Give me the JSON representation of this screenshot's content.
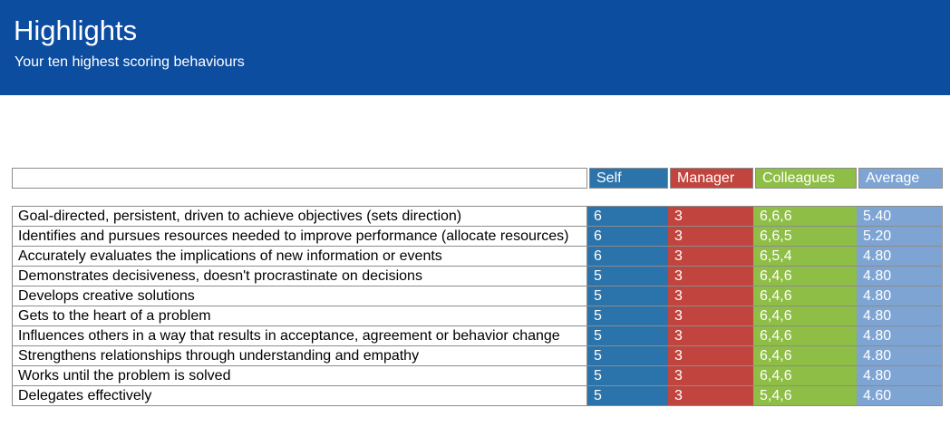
{
  "header": {
    "title": "Highlights",
    "subtitle": "Your ten highest scoring behaviours"
  },
  "colors": {
    "banner": "#0d4d9f",
    "border": "#8c8c8c"
  },
  "table": {
    "columns": [
      {
        "label": "Self",
        "color": "#2b73ab"
      },
      {
        "label": "Manager",
        "color": "#c2443e"
      },
      {
        "label": "Colleagues",
        "color": "#8ebe45"
      },
      {
        "label": "Average",
        "color": "#7ea4d3"
      }
    ],
    "rows": [
      {
        "label": "Goal-directed, persistent, driven to achieve objectives (sets direction)",
        "self": "6",
        "manager": "3",
        "colleagues": "6,6,6",
        "average": "5.40"
      },
      {
        "label": "Identifies and pursues resources needed to improve performance (allocate resources)",
        "self": "6",
        "manager": "3",
        "colleagues": "6,6,5",
        "average": "5.20"
      },
      {
        "label": "Accurately evaluates the implications of new information or events",
        "self": "6",
        "manager": "3",
        "colleagues": "6,5,4",
        "average": "4.80"
      },
      {
        "label": "Demonstrates decisiveness, doesn't procrastinate on decisions",
        "self": "5",
        "manager": "3",
        "colleagues": "6,4,6",
        "average": "4.80"
      },
      {
        "label": "Develops creative solutions",
        "self": "5",
        "manager": "3",
        "colleagues": "6,4,6",
        "average": "4.80"
      },
      {
        "label": "Gets to the heart of a problem",
        "self": "5",
        "manager": "3",
        "colleagues": "6,4,6",
        "average": "4.80"
      },
      {
        "label": "Influences others in a way that results in acceptance, agreement or behavior change",
        "self": "5",
        "manager": "3",
        "colleagues": "6,4,6",
        "average": "4.80"
      },
      {
        "label": "Strengthens relationships through understanding and empathy",
        "self": "5",
        "manager": "3",
        "colleagues": "6,4,6",
        "average": "4.80"
      },
      {
        "label": "Works until the problem is solved",
        "self": "5",
        "manager": "3",
        "colleagues": "6,4,6",
        "average": "4.80"
      },
      {
        "label": "Delegates effectively",
        "self": "5",
        "manager": "3",
        "colleagues": "5,4,6",
        "average": "4.60"
      }
    ]
  }
}
